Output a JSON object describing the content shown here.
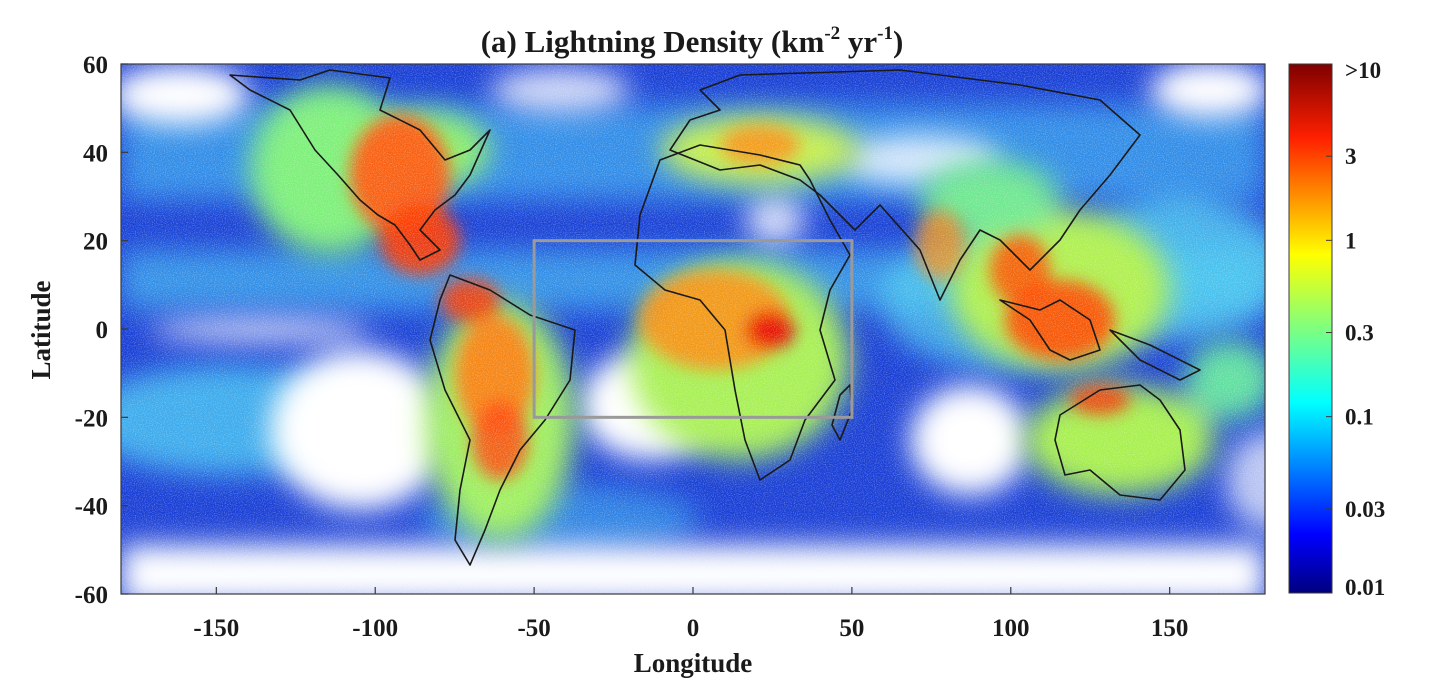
{
  "figure": {
    "title": {
      "text": "(a) Lightning Density (km",
      "sup1": "-2",
      "mid": " yr",
      "sup2": "-1",
      "end": ")"
    },
    "xlabel": "Longitude",
    "ylabel": "Latitude"
  },
  "chart_data": {
    "type": "heatmap",
    "x_range": [
      -180,
      180
    ],
    "y_range": [
      -60,
      60
    ],
    "x_ticks": [
      {
        "value": -150,
        "label": "-150"
      },
      {
        "value": -100,
        "label": "-100"
      },
      {
        "value": -50,
        "label": "-50"
      },
      {
        "value": 0,
        "label": "0"
      },
      {
        "value": 50,
        "label": "50"
      },
      {
        "value": 100,
        "label": "100"
      },
      {
        "value": 150,
        "label": "150"
      }
    ],
    "y_ticks": [
      {
        "value": 60,
        "label": "60"
      },
      {
        "value": 40,
        "label": "40"
      },
      {
        "value": 20,
        "label": "20"
      },
      {
        "value": 0,
        "label": "0"
      },
      {
        "value": -20,
        "label": "-20"
      },
      {
        "value": -40,
        "label": "-40"
      },
      {
        "value": -60,
        "label": "-60"
      }
    ],
    "colorbar": {
      "scale": "log",
      "range": [
        0.01,
        10
      ],
      "ticks": [
        {
          "value": 10,
          "label": ">10"
        },
        {
          "value": 3,
          "label": "3"
        },
        {
          "value": 1,
          "label": "1"
        },
        {
          "value": 0.3,
          "label": "0.3"
        },
        {
          "value": 0.1,
          "label": "0.1"
        },
        {
          "value": 0.03,
          "label": "0.03"
        },
        {
          "value": 0.01,
          "label": "0.01"
        }
      ],
      "colormap": "jet",
      "colors": [
        "#00007f",
        "#0000ff",
        "#007fff",
        "#00ffff",
        "#7fff7f",
        "#ffff00",
        "#ff7f00",
        "#ff0000",
        "#7f0000"
      ]
    },
    "highlight_box": {
      "lon_range": [
        -50,
        50
      ],
      "lat_range": [
        -20,
        20
      ],
      "color": "#9a9a9a"
    },
    "colors": {
      "ocean_background": "#1a3fd6",
      "coastline": "#1a1a1a",
      "sparse_area": "#ffffff"
    }
  }
}
